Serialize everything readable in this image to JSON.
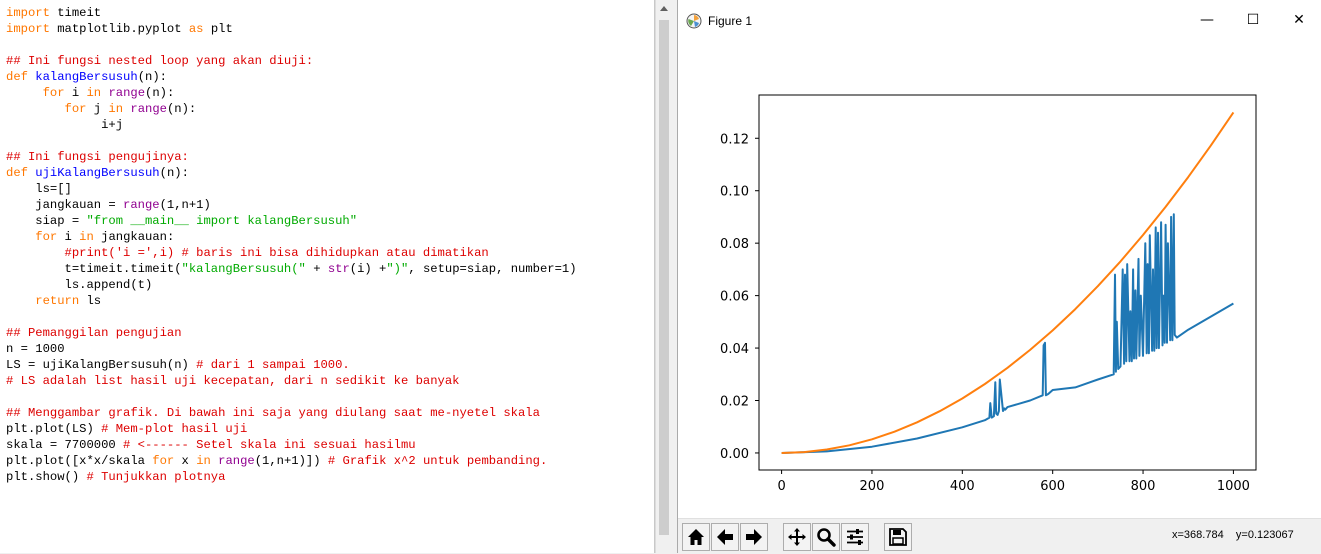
{
  "editor": {
    "lines": [
      [
        {
          "c": "kw",
          "t": "import"
        },
        {
          "c": "",
          "t": " timeit"
        }
      ],
      [
        {
          "c": "kw",
          "t": "import"
        },
        {
          "c": "",
          "t": " matplotlib.pyplot "
        },
        {
          "c": "kw",
          "t": "as"
        },
        {
          "c": "",
          "t": " plt"
        }
      ],
      [],
      [
        {
          "c": "cm",
          "t": "## Ini fungsi nested loop yang akan diuji:"
        }
      ],
      [
        {
          "c": "kw",
          "t": "def"
        },
        {
          "c": "",
          "t": " "
        },
        {
          "c": "fn",
          "t": "kalangBersusuh"
        },
        {
          "c": "",
          "t": "(n):"
        }
      ],
      [
        {
          "c": "",
          "t": "     "
        },
        {
          "c": "kw",
          "t": "for"
        },
        {
          "c": "",
          "t": " i "
        },
        {
          "c": "kw",
          "t": "in"
        },
        {
          "c": "",
          "t": " "
        },
        {
          "c": "bi",
          "t": "range"
        },
        {
          "c": "",
          "t": "(n):"
        }
      ],
      [
        {
          "c": "",
          "t": "        "
        },
        {
          "c": "kw",
          "t": "for"
        },
        {
          "c": "",
          "t": " j "
        },
        {
          "c": "kw",
          "t": "in"
        },
        {
          "c": "",
          "t": " "
        },
        {
          "c": "bi",
          "t": "range"
        },
        {
          "c": "",
          "t": "(n):"
        }
      ],
      [
        {
          "c": "",
          "t": "             i+j"
        }
      ],
      [],
      [
        {
          "c": "cm",
          "t": "## Ini fungsi pengujinya:"
        }
      ],
      [
        {
          "c": "kw",
          "t": "def"
        },
        {
          "c": "",
          "t": " "
        },
        {
          "c": "fn",
          "t": "ujiKalangBersusuh"
        },
        {
          "c": "",
          "t": "(n):"
        }
      ],
      [
        {
          "c": "",
          "t": "    ls=[]"
        }
      ],
      [
        {
          "c": "",
          "t": "    jangkauan = "
        },
        {
          "c": "bi",
          "t": "range"
        },
        {
          "c": "",
          "t": "(1,n+1)"
        }
      ],
      [
        {
          "c": "",
          "t": "    siap = "
        },
        {
          "c": "str",
          "t": "\"from __main__ import kalangBersusuh\""
        }
      ],
      [
        {
          "c": "",
          "t": "    "
        },
        {
          "c": "kw",
          "t": "for"
        },
        {
          "c": "",
          "t": " i "
        },
        {
          "c": "kw",
          "t": "in"
        },
        {
          "c": "",
          "t": " jangkauan:"
        }
      ],
      [
        {
          "c": "",
          "t": "        "
        },
        {
          "c": "cm",
          "t": "#print('i =',i) # baris ini bisa dihidupkan atau dimatikan"
        }
      ],
      [
        {
          "c": "",
          "t": "        t=timeit.timeit("
        },
        {
          "c": "str",
          "t": "\"kalangBersusuh(\""
        },
        {
          "c": "",
          "t": " + "
        },
        {
          "c": "bi",
          "t": "str"
        },
        {
          "c": "",
          "t": "(i) +"
        },
        {
          "c": "str",
          "t": "\")\""
        },
        {
          "c": "",
          "t": ", setup=siap, number=1)"
        }
      ],
      [
        {
          "c": "",
          "t": "        ls.append(t)"
        }
      ],
      [
        {
          "c": "",
          "t": "    "
        },
        {
          "c": "kw",
          "t": "return"
        },
        {
          "c": "",
          "t": " ls"
        }
      ],
      [],
      [
        {
          "c": "cm",
          "t": "## Pemanggilan pengujian"
        }
      ],
      [
        {
          "c": "",
          "t": "n = 1000"
        }
      ],
      [
        {
          "c": "",
          "t": "LS = ujiKalangBersusuh(n) "
        },
        {
          "c": "cm",
          "t": "# dari 1 sampai 1000."
        }
      ],
      [
        {
          "c": "cm",
          "t": "# LS adalah list hasil uji kecepatan, dari n sedikit ke banyak"
        }
      ],
      [],
      [
        {
          "c": "cm",
          "t": "## Menggambar grafik. Di bawah ini saja yang diulang saat me-nyetel skala"
        }
      ],
      [
        {
          "c": "",
          "t": "plt.plot(LS) "
        },
        {
          "c": "cm",
          "t": "# Mem-plot hasil uji"
        }
      ],
      [
        {
          "c": "",
          "t": "skala = 7700000 "
        },
        {
          "c": "cm",
          "t": "# <------ Setel skala ini sesuai hasilmu"
        }
      ],
      [
        {
          "c": "",
          "t": "plt.plot([x*x/skala "
        },
        {
          "c": "kw",
          "t": "for"
        },
        {
          "c": "",
          "t": " x "
        },
        {
          "c": "kw",
          "t": "in"
        },
        {
          "c": "",
          "t": " "
        },
        {
          "c": "bi",
          "t": "range"
        },
        {
          "c": "",
          "t": "(1,n+1)]) "
        },
        {
          "c": "cm",
          "t": "# Grafik x^2 untuk pembanding."
        }
      ],
      [
        {
          "c": "",
          "t": "plt.show() "
        },
        {
          "c": "cm",
          "t": "# Tunjukkan plotnya"
        }
      ]
    ]
  },
  "figure_window": {
    "title": "Figure 1",
    "minimize_glyph": "—",
    "maximize_glyph": "☐",
    "close_glyph": "✕",
    "icon": "matplotlib-icon"
  },
  "toolbar": {
    "buttons": [
      "home-icon",
      "back-arrow-icon",
      "forward-arrow-icon",
      "pan-icon",
      "zoom-icon",
      "configure-subplots-icon",
      "save-icon"
    ],
    "coords": "x=368.784    y=0.123067"
  },
  "colors": {
    "series_blue": "#1f77b4",
    "series_orange": "#ff7f0e"
  },
  "chart_data": {
    "type": "line",
    "title": "",
    "xlabel": "",
    "ylabel": "",
    "xlim": [
      -50,
      1050
    ],
    "ylim": [
      -0.0065,
      0.1365
    ],
    "xticks": [
      0,
      200,
      400,
      600,
      800,
      1000
    ],
    "xtick_labels": [
      "0",
      "200",
      "400",
      "600",
      "800",
      "1000"
    ],
    "yticks": [
      0.0,
      0.02,
      0.04,
      0.06,
      0.08,
      0.1,
      0.12
    ],
    "ytick_labels": [
      "0.00",
      "0.02",
      "0.04",
      "0.06",
      "0.08",
      "0.10",
      "0.12"
    ],
    "grid": false,
    "legend": "none",
    "series": [
      {
        "color": "#1f77b4",
        "x": [
          0,
          100,
          200,
          300,
          400,
          450,
          460,
          462,
          465,
          470,
          473,
          475,
          478,
          481,
          483,
          490,
          493,
          495,
          500,
          550,
          578,
          580,
          583,
          585,
          590,
          600,
          650,
          700,
          735,
          738,
          740,
          742,
          745,
          750,
          755,
          758,
          760,
          763,
          765,
          770,
          772,
          775,
          778,
          780,
          783,
          785,
          790,
          792,
          795,
          800,
          805,
          808,
          810,
          813,
          815,
          820,
          822,
          825,
          828,
          830,
          833,
          835,
          840,
          843,
          845,
          848,
          850,
          853,
          855,
          860,
          862,
          865,
          868,
          870,
          875,
          900,
          950,
          1000
        ],
        "y": [
          0.0,
          0.0006,
          0.0024,
          0.0055,
          0.0098,
          0.0125,
          0.0135,
          0.019,
          0.0135,
          0.014,
          0.027,
          0.015,
          0.0145,
          0.016,
          0.028,
          0.016,
          0.017,
          0.0165,
          0.0175,
          0.02,
          0.022,
          0.041,
          0.042,
          0.022,
          0.0225,
          0.024,
          0.025,
          0.028,
          0.03,
          0.068,
          0.031,
          0.05,
          0.032,
          0.033,
          0.07,
          0.034,
          0.068,
          0.035,
          0.072,
          0.035,
          0.054,
          0.035,
          0.07,
          0.036,
          0.062,
          0.036,
          0.074,
          0.037,
          0.06,
          0.037,
          0.08,
          0.038,
          0.072,
          0.038,
          0.083,
          0.039,
          0.07,
          0.039,
          0.086,
          0.04,
          0.084,
          0.04,
          0.088,
          0.041,
          0.06,
          0.042,
          0.087,
          0.042,
          0.08,
          0.043,
          0.09,
          0.043,
          0.091,
          0.045,
          0.044,
          0.047,
          0.052,
          0.057
        ]
      },
      {
        "color": "#ff7f0e",
        "x": [
          0,
          50,
          100,
          150,
          200,
          250,
          300,
          350,
          400,
          450,
          500,
          550,
          600,
          650,
          700,
          750,
          800,
          850,
          900,
          950,
          1000
        ],
        "y": [
          0.0,
          0.000325,
          0.0013,
          0.002922,
          0.005195,
          0.008117,
          0.011688,
          0.015909,
          0.020779,
          0.026299,
          0.032468,
          0.039286,
          0.046753,
          0.05487,
          0.063636,
          0.073052,
          0.083117,
          0.093831,
          0.105195,
          0.117208,
          0.12987
        ]
      }
    ]
  }
}
